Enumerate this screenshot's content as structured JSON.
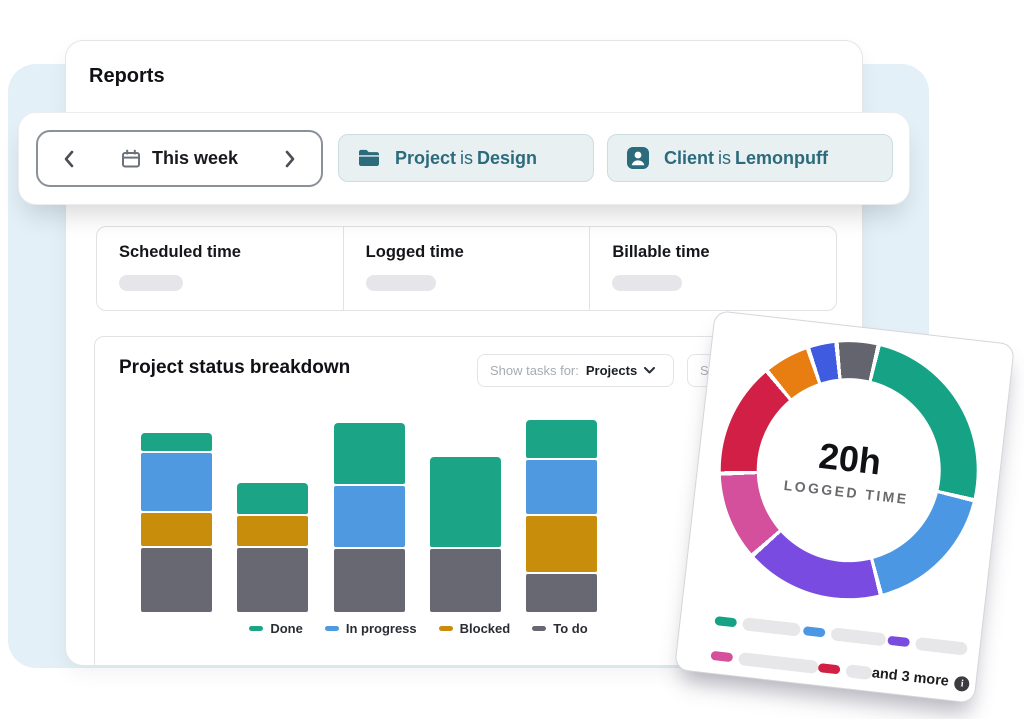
{
  "header": {
    "title": "Reports"
  },
  "filter_bar": {
    "date_picker": {
      "label": "This week"
    },
    "chips": [
      {
        "icon": "folder-icon",
        "subject": "Project",
        "connector": "is",
        "value": "Design"
      },
      {
        "icon": "user-icon",
        "subject": "Client",
        "connector": "is",
        "value": "Lemonpuff"
      }
    ]
  },
  "stats": {
    "items": [
      {
        "label": "Scheduled time"
      },
      {
        "label": "Logged time"
      },
      {
        "label": "Billable time"
      }
    ]
  },
  "chart_header": {
    "title": "Project status breakdown",
    "dropdown": {
      "label": "Show tasks for:",
      "value": "Projects"
    },
    "dropdown2_visible_text": "Sta"
  },
  "chart_data": [
    {
      "type": "bar",
      "stacked": true,
      "title": "Project status breakdown",
      "categories": [
        "",
        "",
        "",
        "",
        ""
      ],
      "series": [
        {
          "name": "Done",
          "color": "#1ca487",
          "values": [
            18,
            31,
            61,
            90,
            38
          ]
        },
        {
          "name": "In progress",
          "color": "#4e99e0",
          "values": [
            58,
            0,
            61,
            0,
            54
          ]
        },
        {
          "name": "Blocked",
          "color": "#c88d0a",
          "values": [
            33,
            30,
            0,
            0,
            56
          ]
        },
        {
          "name": "To do",
          "color": "#686872",
          "values": [
            64,
            64,
            63,
            63,
            38
          ]
        }
      ],
      "value_unit": "relative-height-px",
      "axes_visible": false,
      "legend_position": "bottom"
    },
    {
      "type": "pie",
      "subtype": "donut",
      "center_value": "20h",
      "center_label": "LOGGED TIME",
      "start_deg": 349,
      "gap_deg": 2,
      "segments": [
        {
          "name": "segment-gray",
          "color": "#64646e",
          "deg": 17
        },
        {
          "name": "segment-green",
          "color": "#16a285",
          "deg": 88
        },
        {
          "name": "segment-blue",
          "color": "#4b97e3",
          "deg": 60
        },
        {
          "name": "segment-purple",
          "color": "#7a4be0",
          "deg": 61
        },
        {
          "name": "segment-pink",
          "color": "#d4509c",
          "deg": 38
        },
        {
          "name": "segment-crimson",
          "color": "#d11f45",
          "deg": 50
        },
        {
          "name": "segment-orange",
          "color": "#e87d12",
          "deg": 19
        },
        {
          "name": "segment-royal",
          "color": "#3f5be0",
          "deg": 11
        }
      ],
      "legend_rows": [
        [
          {
            "color": "#16a285",
            "placeholder_w": 58
          },
          {
            "color": "#4b97e3",
            "placeholder_w": 55
          },
          {
            "color": "#7a4be0",
            "placeholder_w": 52
          }
        ],
        [
          {
            "color": "#d4509c",
            "placeholder_w": 80
          },
          {
            "color": "#d11f45",
            "placeholder_w": 26
          }
        ]
      ],
      "more_label": "and 3 more"
    }
  ],
  "theme": {
    "accent_teal": "#2c6b7c",
    "panel_blue": "#e3f0f7",
    "placeholder_gray": "#e7e7ea"
  }
}
